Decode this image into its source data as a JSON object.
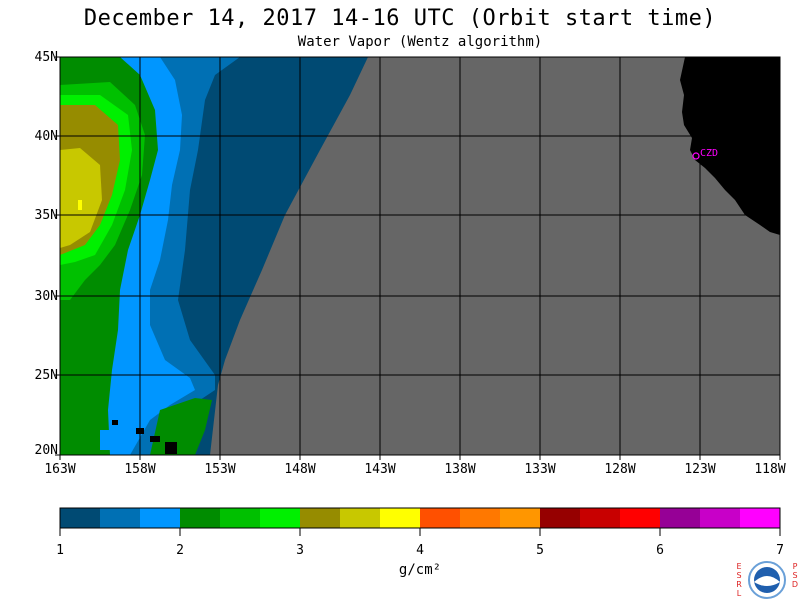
{
  "header": {
    "title": "December 14, 2017  14-16 UTC  (Orbit start time)",
    "subtitle": "Water Vapor (Wentz algorithm)"
  },
  "map": {
    "lat_labels": [
      "45N",
      "40N",
      "35N",
      "30N",
      "25N",
      "20N"
    ],
    "lon_labels": [
      "163W",
      "158W",
      "153W",
      "148W",
      "143W",
      "138W",
      "133W",
      "128W",
      "123W",
      "118W"
    ],
    "station_label": "CZD",
    "colors": {
      "no_data": "#666666",
      "land": "#000000",
      "grid": "#000000",
      "station": "#ff00ff"
    }
  },
  "colorbar": {
    "tick_labels": [
      "1",
      "2",
      "3",
      "4",
      "5",
      "6",
      "7"
    ],
    "unit": "g/cm²",
    "colors": [
      "#004a73",
      "#0070b4",
      "#0096ff",
      "#008c00",
      "#00c000",
      "#00f000",
      "#968c00",
      "#c8c800",
      "#ffff00",
      "#ff5000",
      "#ff7800",
      "#ff9600",
      "#960000",
      "#c80000",
      "#ff0000",
      "#960096",
      "#c800c8",
      "#ff00ff"
    ]
  },
  "logo": {
    "left_letters": "ESRL",
    "right_letters": "PSD",
    "name": "noaa-logo"
  }
}
